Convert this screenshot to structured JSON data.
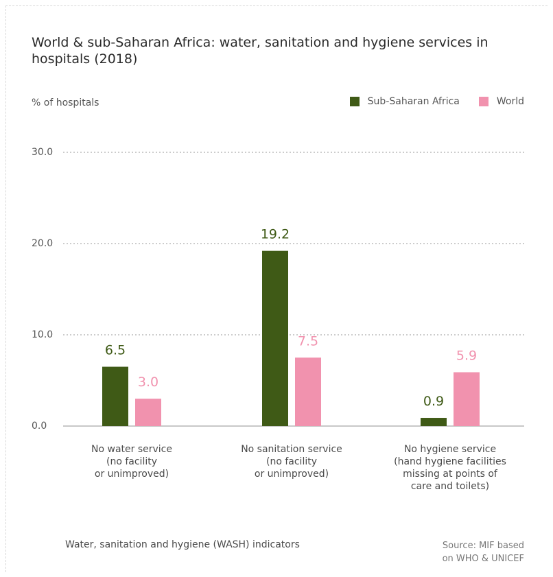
{
  "chart_data": {
    "type": "bar",
    "title": "World & sub-Saharan Africa: water, sanitation and hygiene services in hospitals (2018)",
    "ylabel": "% of hospitals",
    "xlabel": "Water, sanitation and hygiene (WASH) indicators",
    "source": "Source: MIF based\non WHO & UNICEF",
    "categories": [
      "No water service\n(no facility\nor unimproved)",
      "No sanitation service\n(no facility\nor unimproved)",
      "No hygiene service\n(hand hygiene facilities\nmissing at points of\ncare and toilets)"
    ],
    "series": [
      {
        "name": "Sub-Saharan Africa",
        "color": "#3f5a16",
        "values": [
          6.5,
          19.2,
          0.9
        ]
      },
      {
        "name": "World",
        "color": "#f192ae",
        "values": [
          3.0,
          7.5,
          5.9
        ]
      }
    ],
    "yticks": [
      "30.0",
      "20.0",
      "10.0",
      "0.0"
    ],
    "ylim": [
      0,
      30
    ],
    "grid": true,
    "legend_position": "top-right"
  }
}
